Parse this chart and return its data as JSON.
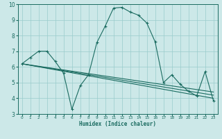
{
  "xlabel": "Humidex (Indice chaleur)",
  "bg_color": "#cce8e8",
  "grid_color": "#99cccc",
  "line_color": "#1a6b60",
  "xlim": [
    -0.5,
    23.5
  ],
  "ylim": [
    3,
    10
  ],
  "xticks": [
    0,
    1,
    2,
    3,
    4,
    5,
    6,
    7,
    8,
    9,
    10,
    11,
    12,
    13,
    14,
    15,
    16,
    17,
    18,
    19,
    20,
    21,
    22,
    23
  ],
  "yticks": [
    3,
    4,
    5,
    6,
    7,
    8,
    9,
    10
  ],
  "main_x": [
    0,
    1,
    2,
    3,
    4,
    5,
    6,
    7,
    8,
    9,
    10,
    11,
    12,
    13,
    14,
    15,
    16,
    17,
    18,
    19,
    20,
    21,
    22,
    23
  ],
  "main_y": [
    6.2,
    6.6,
    7.0,
    7.0,
    6.35,
    5.6,
    3.3,
    4.8,
    5.5,
    7.55,
    8.6,
    9.75,
    9.8,
    9.5,
    9.3,
    8.8,
    7.6,
    5.0,
    5.5,
    4.9,
    4.45,
    4.15,
    5.7,
    3.85
  ],
  "line1_x": [
    0,
    23
  ],
  "line1_y": [
    6.2,
    4.0
  ],
  "line2_x": [
    0,
    23
  ],
  "line2_y": [
    6.2,
    4.2
  ],
  "line3_x": [
    0,
    23
  ],
  "line3_y": [
    6.2,
    4.4
  ]
}
